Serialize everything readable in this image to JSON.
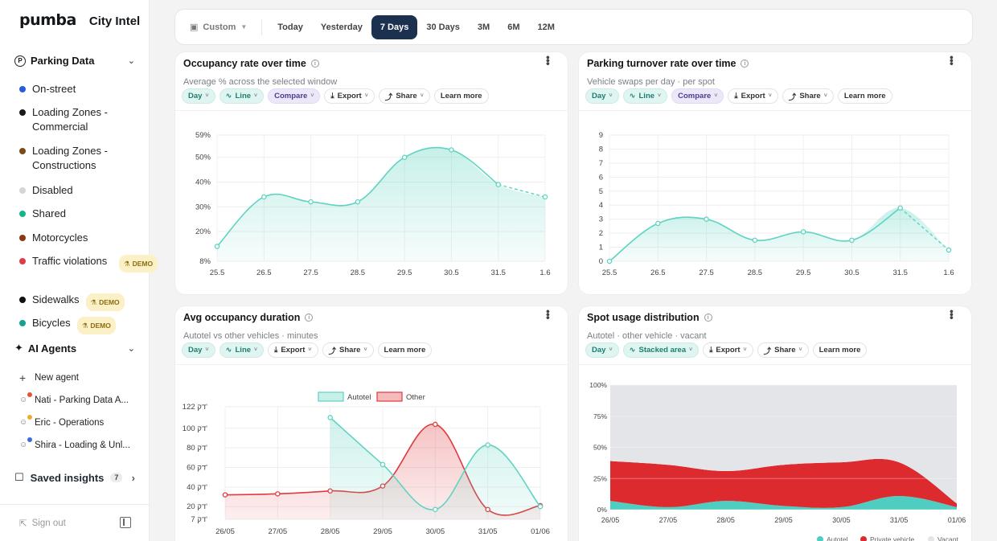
{
  "brand": {
    "logo": "pumba",
    "product": "City Intel"
  },
  "sidebar": {
    "parking_section": "Parking Data",
    "layers": [
      {
        "label": "On-street",
        "color": "#2b5be0",
        "demo": false
      },
      {
        "label": "Loading Zones - Commercial",
        "color": "#1a1a1a",
        "demo": false
      },
      {
        "label": "Loading Zones - Constructions",
        "color": "#7a4a1a",
        "demo": false
      },
      {
        "label": "Disabled",
        "color": "#d5d5d5",
        "demo": false
      },
      {
        "label": "Shared",
        "color": "#19b38a",
        "demo": false
      },
      {
        "label": "Motorcycles",
        "color": "#8b3a12",
        "demo": false
      },
      {
        "label": "Traffic violations",
        "color": "#e33a4a",
        "demo": true
      },
      {
        "label": "Sidewalks",
        "color": "#111111",
        "demo": true
      },
      {
        "label": "Bicycles",
        "color": "#14a38f",
        "demo": true
      }
    ],
    "demo_label": "DEMO",
    "agents_section": "AI Agents",
    "new_agent": "New agent",
    "agents": [
      {
        "label": "Nati - Parking Data A...",
        "pip": "#e8552d"
      },
      {
        "label": "Eric - Operations",
        "pip": "#e8b02d"
      },
      {
        "label": "Shira - Loading & Unl...",
        "pip": "#3c6be0"
      }
    ],
    "saved_insights": "Saved insights",
    "saved_count": "7",
    "sign_out": "Sign out"
  },
  "topbar": {
    "custom": "Custom",
    "ranges": [
      "Today",
      "Yesterday",
      "7 Days",
      "30 Days",
      "3M",
      "6M",
      "12M"
    ],
    "active_range": "7 Days"
  },
  "chips": {
    "day": "Day",
    "line": "Line",
    "compare": "Compare",
    "export": "Export",
    "share": "Share",
    "learn_more": "Learn more",
    "stacked_area": "Stacked area"
  },
  "cards": {
    "occupancy": {
      "title": "Occupancy rate over time",
      "subtitle": "Average % across the selected window"
    },
    "turnover": {
      "title": "Parking turnover rate over time",
      "subtitle": "Vehicle swaps per day · per spot"
    },
    "duration": {
      "title": "Avg occupancy duration",
      "subtitle": "Autotel vs other vehicles · minutes"
    },
    "spot_usage": {
      "title": "Spot usage distribution",
      "subtitle": "Autotel · other vehicle · vacant"
    }
  },
  "chart_data": [
    {
      "type": "area",
      "categories": [
        "25.5",
        "26.5",
        "27.5",
        "28.5",
        "29.5",
        "30.5",
        "31.5",
        "1.6"
      ],
      "series": [
        {
          "values": [
            14,
            34,
            32,
            32,
            50,
            53,
            39,
            34
          ]
        }
      ],
      "yticks": [
        "8%",
        "20%",
        "30%",
        "40%",
        "50%",
        "59%"
      ],
      "ylim": [
        8,
        59
      ],
      "dashed_last_segment": true,
      "color": "#5fd3c1"
    },
    {
      "type": "area",
      "categories": [
        "25.5",
        "26.5",
        "27.5",
        "28.5",
        "29.5",
        "30.5",
        "31.5",
        "1.6"
      ],
      "series": [
        {
          "values": [
            0,
            2.7,
            3.0,
            1.5,
            2.1,
            1.5,
            3.8,
            0.8
          ]
        }
      ],
      "yticks": [
        "0",
        "1",
        "2",
        "3",
        "4",
        "5",
        "6",
        "7",
        "8",
        "9"
      ],
      "ylim": [
        0,
        9
      ],
      "dashed_last_segment": true,
      "color": "#5fd3c1"
    },
    {
      "type": "area",
      "categories": [
        "26/05",
        "27/05",
        "28/05",
        "29/05",
        "30/05",
        "31/05",
        "01/06"
      ],
      "series": [
        {
          "name": "Autotel",
          "values": [
            null,
            null,
            111,
            63,
            17,
            83,
            20
          ],
          "color": "#5fd3c1"
        },
        {
          "name": "Other",
          "values": [
            32,
            33,
            36,
            41,
            104,
            17,
            21
          ],
          "color": "#e0393e"
        }
      ],
      "yticks": [
        "7 דק'",
        "20 דק'",
        "40 דק'",
        "60 דק'",
        "80 דק'",
        "100 דק'",
        "122 דק'"
      ],
      "ytick_values": [
        7,
        20,
        40,
        60,
        80,
        100,
        122
      ],
      "ylim": [
        7,
        122
      ],
      "legend_position": "top"
    },
    {
      "type": "area",
      "stacked": true,
      "categories": [
        "26/05",
        "27/05",
        "28/05",
        "29/05",
        "30/05",
        "31/05",
        "01/06"
      ],
      "series": [
        {
          "name": "Autotel",
          "values": [
            7,
            2,
            7,
            3,
            2,
            11,
            2
          ],
          "color": "#4ecdc0"
        },
        {
          "name": "Private vehicle",
          "values": [
            32,
            34,
            24,
            33,
            36,
            27,
            3
          ],
          "color": "#dd2a2f"
        },
        {
          "name": "Vacant",
          "values": [
            61,
            64,
            69,
            64,
            62,
            62,
            95
          ],
          "color": "#e4e5e9"
        }
      ],
      "yticks": [
        "0%",
        "25%",
        "50%",
        "75%",
        "100%"
      ],
      "ylim": [
        0,
        100
      ],
      "legend_position": "bottom"
    }
  ]
}
